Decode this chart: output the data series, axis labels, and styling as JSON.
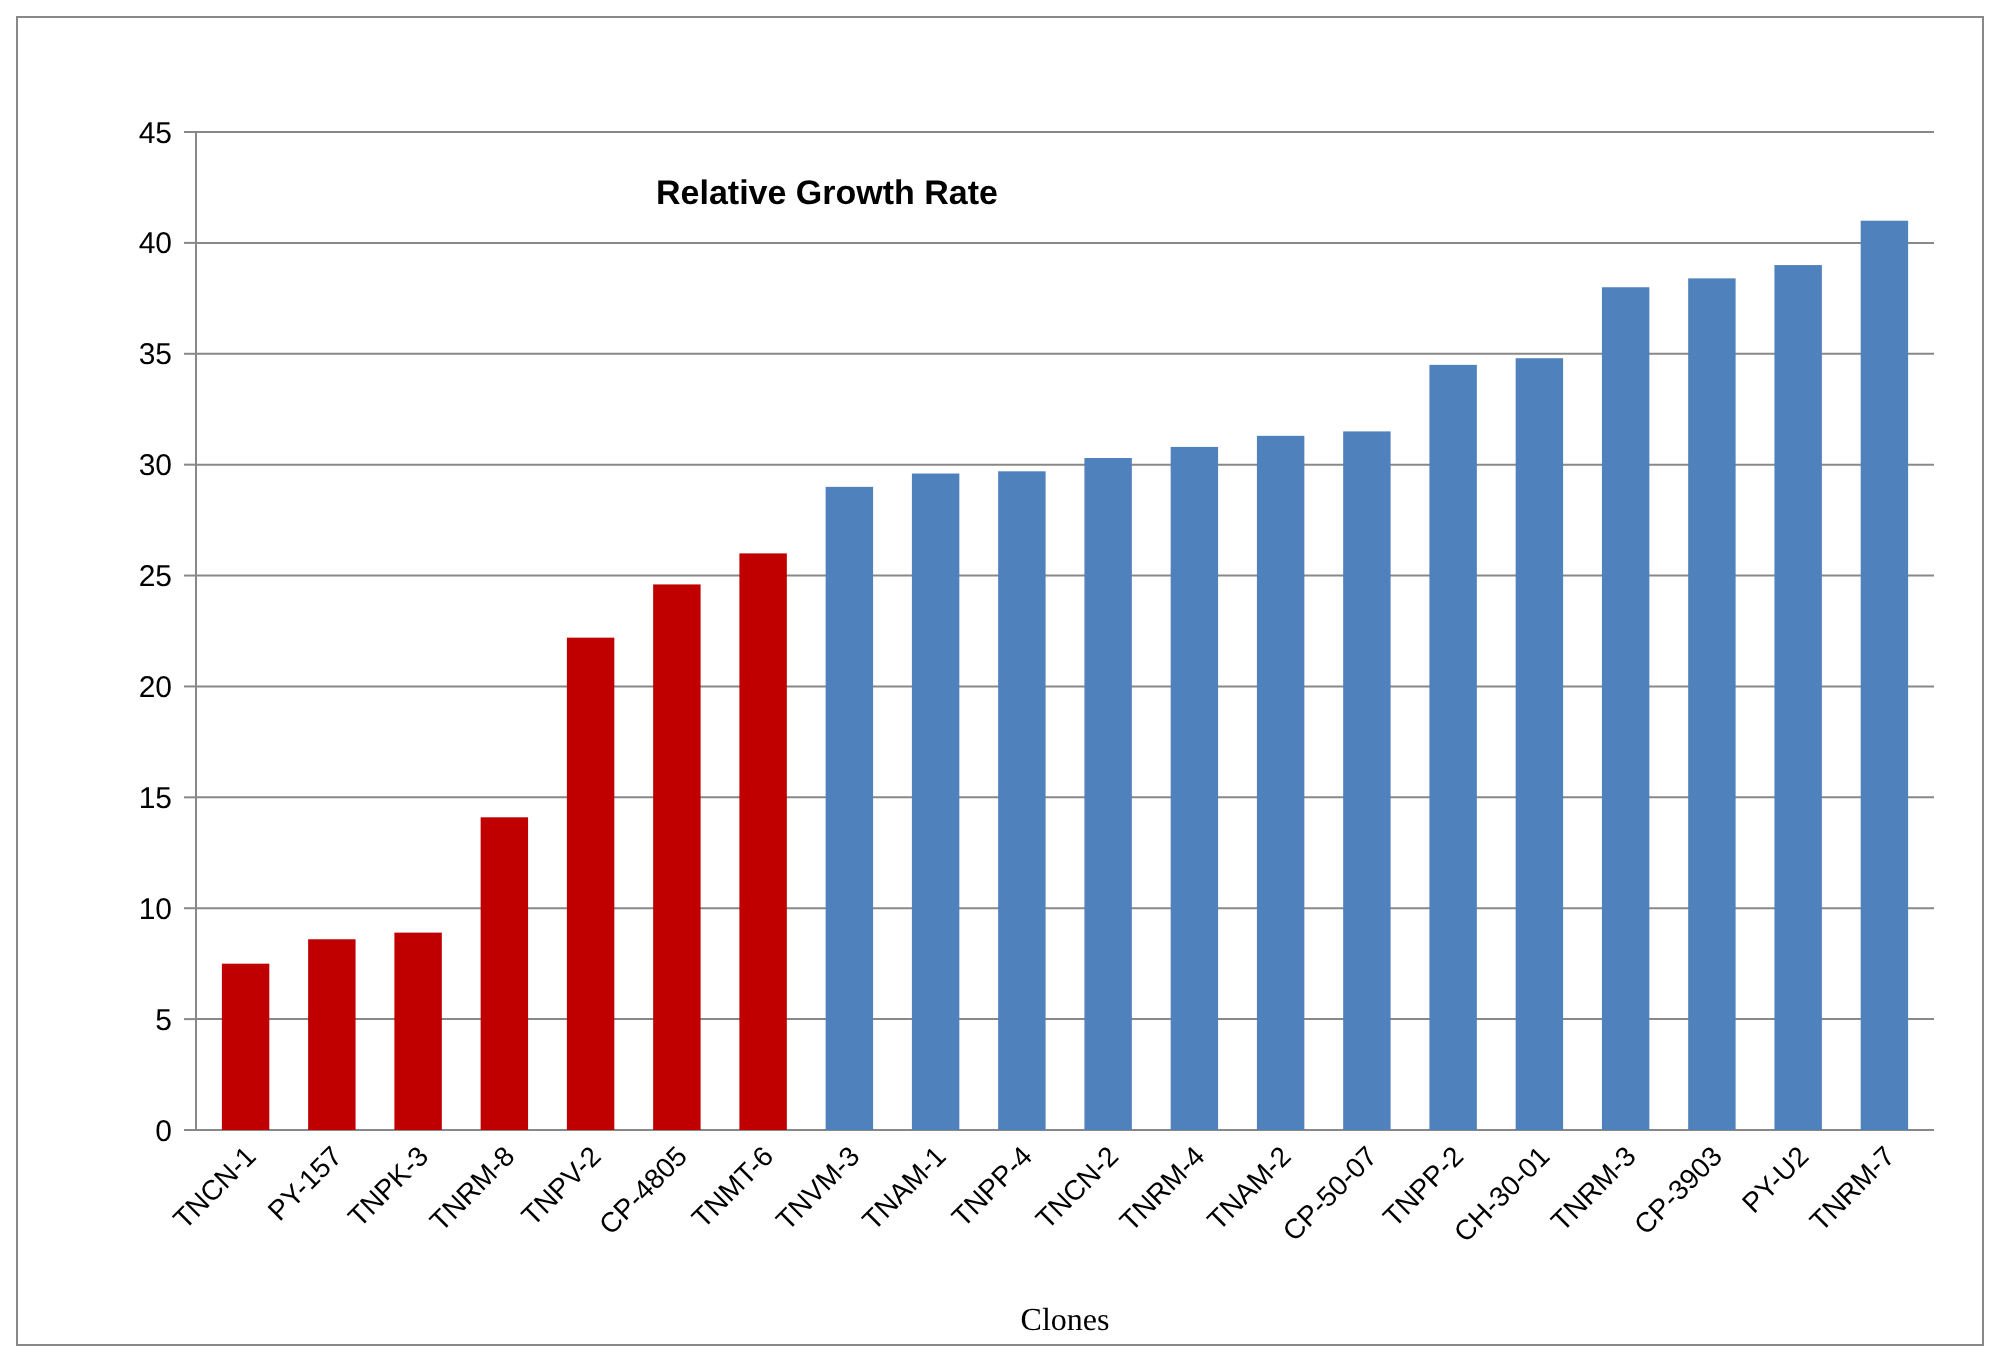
{
  "chart_data": {
    "type": "bar",
    "title": "Relative Growth Rate",
    "xlabel": "Clones",
    "categories": [
      "TNCN-1",
      "PY-157",
      "TNPK-3",
      "TNRM-8",
      "TNPV-2",
      "CP-4805",
      "TNMT-6",
      "TNVM-3",
      "TNAM-1",
      "TNPP-4",
      "TNCN-2",
      "TNRM-4",
      "TNAM-2",
      "CP-50-07",
      "TNPP-2",
      "CH-30-01",
      "TNRM-3",
      "CP-3903",
      "PY-U2",
      "TNRM-7"
    ],
    "values": [
      7.5,
      8.6,
      8.9,
      14.1,
      22.2,
      24.6,
      26,
      29,
      29.6,
      29.7,
      30.3,
      30.8,
      31.3,
      31.5,
      34.5,
      34.8,
      38,
      38.4,
      39,
      41
    ],
    "colors": [
      "#c00000",
      "#c00000",
      "#c00000",
      "#c00000",
      "#c00000",
      "#c00000",
      "#c00000",
      "#4f81bd",
      "#4f81bd",
      "#4f81bd",
      "#4f81bd",
      "#4f81bd",
      "#4f81bd",
      "#4f81bd",
      "#4f81bd",
      "#4f81bd",
      "#4f81bd",
      "#4f81bd",
      "#4f81bd",
      "#4f81bd"
    ],
    "ylim": [
      0,
      45
    ],
    "yticks": [
      0,
      5,
      10,
      15,
      20,
      25,
      30,
      35,
      40,
      45
    ],
    "grid": true
  }
}
